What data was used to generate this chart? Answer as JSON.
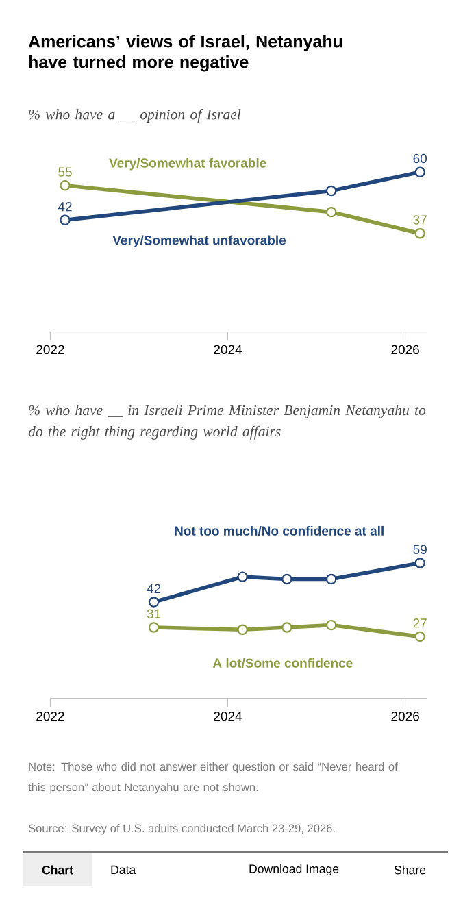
{
  "chart_data": [
    {
      "type": "line",
      "title": "Americans’ views of Israel, Netanyahu have turned more negative",
      "subtitle": "% who have a __ opinion of Israel",
      "x": [
        "2022-03",
        "2025-03",
        "2026-03"
      ],
      "xlim": [
        "2022",
        "2026-04"
      ],
      "xticks": [
        "2022",
        "2024",
        "2026"
      ],
      "tick_labels": "x",
      "marker": "circle",
      "grid": false,
      "legend": false,
      "series": [
        {
          "name": "Very/Somewhat favorable",
          "color": "#8c9b3e",
          "values": [
            55,
            45,
            37
          ],
          "value_labels": [
            "55",
            null,
            "37"
          ]
        },
        {
          "name": "Very/Somewhat unfavorable",
          "color": "#22477d",
          "values": [
            42,
            53,
            60
          ],
          "value_labels": [
            "42",
            null,
            "60"
          ]
        }
      ]
    },
    {
      "type": "line",
      "subtitle": "% who have __ in Israeli Prime Minister Benjamin Netanyahu to do the right thing regarding world affairs",
      "x": [
        "2023-03",
        "2024-03",
        "2024-09",
        "2025-03",
        "2026-03"
      ],
      "xlim": [
        "2022",
        "2026-04"
      ],
      "xticks": [
        "2022",
        "2024",
        "2026"
      ],
      "tick_labels": "x",
      "marker": "circle",
      "grid": false,
      "legend": false,
      "series": [
        {
          "name": "Not too much/No confidence at all",
          "color": "#22477d",
          "values": [
            42,
            53,
            52,
            52,
            59
          ],
          "value_labels": [
            "42",
            null,
            null,
            null,
            "59"
          ]
        },
        {
          "name": "A lot/Some confidence",
          "color": "#8c9b3e",
          "values": [
            31,
            30,
            31,
            32,
            27
          ],
          "value_labels": [
            "31",
            null,
            null,
            null,
            "27"
          ]
        }
      ],
      "annotations": [
        "Note: Those who did not answer either question or said “Never heard of this person” about Netanyahu are not shown.",
        "Source: Survey of U.S. adults conducted March 23-29, 2026.",
        "Chart",
        "Data",
        "Download Image",
        "Share"
      ]
    }
  ]
}
